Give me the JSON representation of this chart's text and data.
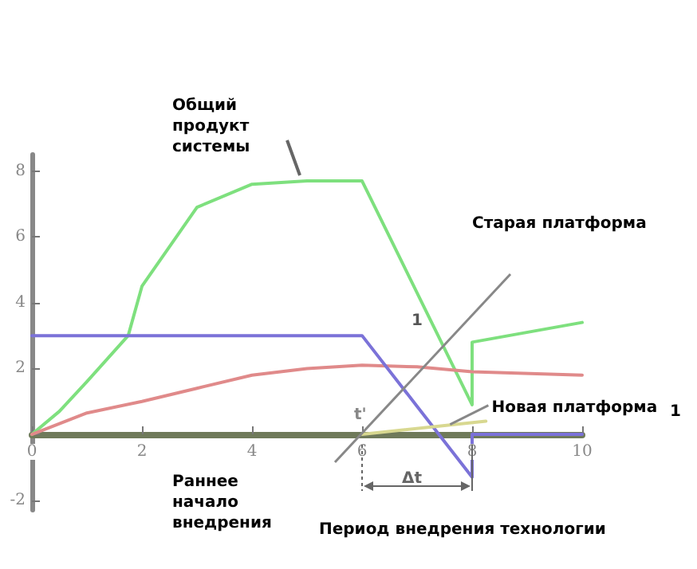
{
  "chart_data": {
    "type": "line",
    "x": [
      0,
      0.5,
      1,
      1.75,
      2,
      3,
      4,
      5,
      6,
      8,
      8,
      10
    ],
    "series": [
      {
        "color": "#7ee07e",
        "values": [
          0,
          0.7,
          1.6,
          3,
          4.5,
          6.9,
          7.6,
          7.7,
          7.7,
          0.9,
          2.8,
          3.4
        ]
      },
      {
        "color": "#e08a8a",
        "x": [
          0,
          1,
          2,
          3,
          4,
          5,
          6,
          7,
          8,
          10
        ],
        "values": [
          0,
          0.65,
          1.0,
          1.4,
          1.8,
          2.0,
          2.1,
          2.05,
          1.9,
          1.8
        ]
      },
      {
        "color": "#7b72d8",
        "x": [
          0,
          6,
          8,
          8,
          10
        ],
        "values": [
          3,
          3,
          -1.3,
          0,
          0
        ]
      },
      {
        "color": "#d8d890",
        "x": [
          6,
          8.25
        ],
        "values": [
          0,
          0.4
        ]
      }
    ],
    "xlim": [
      0,
      10
    ],
    "xticks": [
      0,
      2,
      4,
      6,
      8,
      10
    ],
    "ylim": [
      -2.3,
      8.5
    ],
    "yticks": [
      -2,
      {
        "value": 0,
        "label": null
      },
      2,
      4,
      6,
      8
    ],
    "grid": false,
    "marker": "none",
    "line_style": "solid",
    "annotations": [
      "Общий продукт системы",
      "Старая платформа",
      {
        "text": "Новая платформа",
        "x": 7.6,
        "y": 0.3
      },
      "Раннее начало внедрения",
      "Период внедрения технологии",
      "t'",
      "Δt",
      "1",
      "1"
    ]
  }
}
